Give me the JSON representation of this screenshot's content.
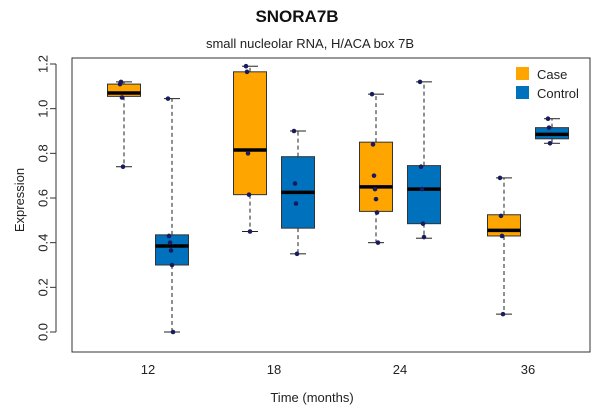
{
  "chart_data": {
    "type": "box",
    "title": "SNORA7B",
    "subtitle": "small nucleolar RNA, H/ACA box 7B",
    "xlabel": "Time (months)",
    "ylabel": "Expression",
    "ylim": [
      0,
      1.2
    ],
    "yticks": [
      "0.0",
      "0.2",
      "0.4",
      "0.6",
      "0.8",
      "1.0",
      "1.2"
    ],
    "categories": [
      "12",
      "18",
      "24",
      "36"
    ],
    "legend": {
      "placement": "top-right"
    },
    "series": [
      {
        "name": "Case",
        "color": "#FFA500",
        "boxes": [
          {
            "min": 0.74,
            "q1": 1.055,
            "median": 1.07,
            "q3": 1.11,
            "max": 1.12,
            "points": [
              1.11,
              1.12,
              1.05,
              0.74
            ]
          },
          {
            "min": 0.45,
            "q1": 0.615,
            "median": 0.815,
            "q3": 1.165,
            "max": 1.19,
            "points": [
              1.19,
              1.165,
              0.8,
              0.615,
              0.45
            ]
          },
          {
            "min": 0.4,
            "q1": 0.54,
            "median": 0.65,
            "q3": 0.85,
            "max": 1.065,
            "points": [
              1.065,
              0.84,
              0.7,
              0.64,
              0.595,
              0.535,
              0.4
            ]
          },
          {
            "min": 0.08,
            "q1": 0.43,
            "median": 0.455,
            "q3": 0.525,
            "max": 0.69,
            "points": [
              0.69,
              0.52,
              0.43,
              0.08
            ]
          }
        ]
      },
      {
        "name": "Control",
        "color": "#0072BD",
        "boxes": [
          {
            "min": 0.0,
            "q1": 0.3,
            "median": 0.385,
            "q3": 0.435,
            "max": 1.045,
            "points": [
              1.045,
              0.43,
              0.4,
              0.365,
              0.3,
              0.0
            ]
          },
          {
            "min": 0.35,
            "q1": 0.465,
            "median": 0.625,
            "q3": 0.785,
            "max": 0.9,
            "points": [
              0.9,
              0.665,
              0.575,
              0.35
            ]
          },
          {
            "min": 0.42,
            "q1": 0.485,
            "median": 0.64,
            "q3": 0.745,
            "max": 1.12,
            "points": [
              1.12,
              0.74,
              0.64,
              0.485,
              0.425
            ]
          },
          {
            "min": 0.845,
            "q1": 0.865,
            "median": 0.885,
            "q3": 0.915,
            "max": 0.955,
            "points": [
              0.955,
              0.915,
              0.845
            ]
          }
        ]
      }
    ]
  }
}
